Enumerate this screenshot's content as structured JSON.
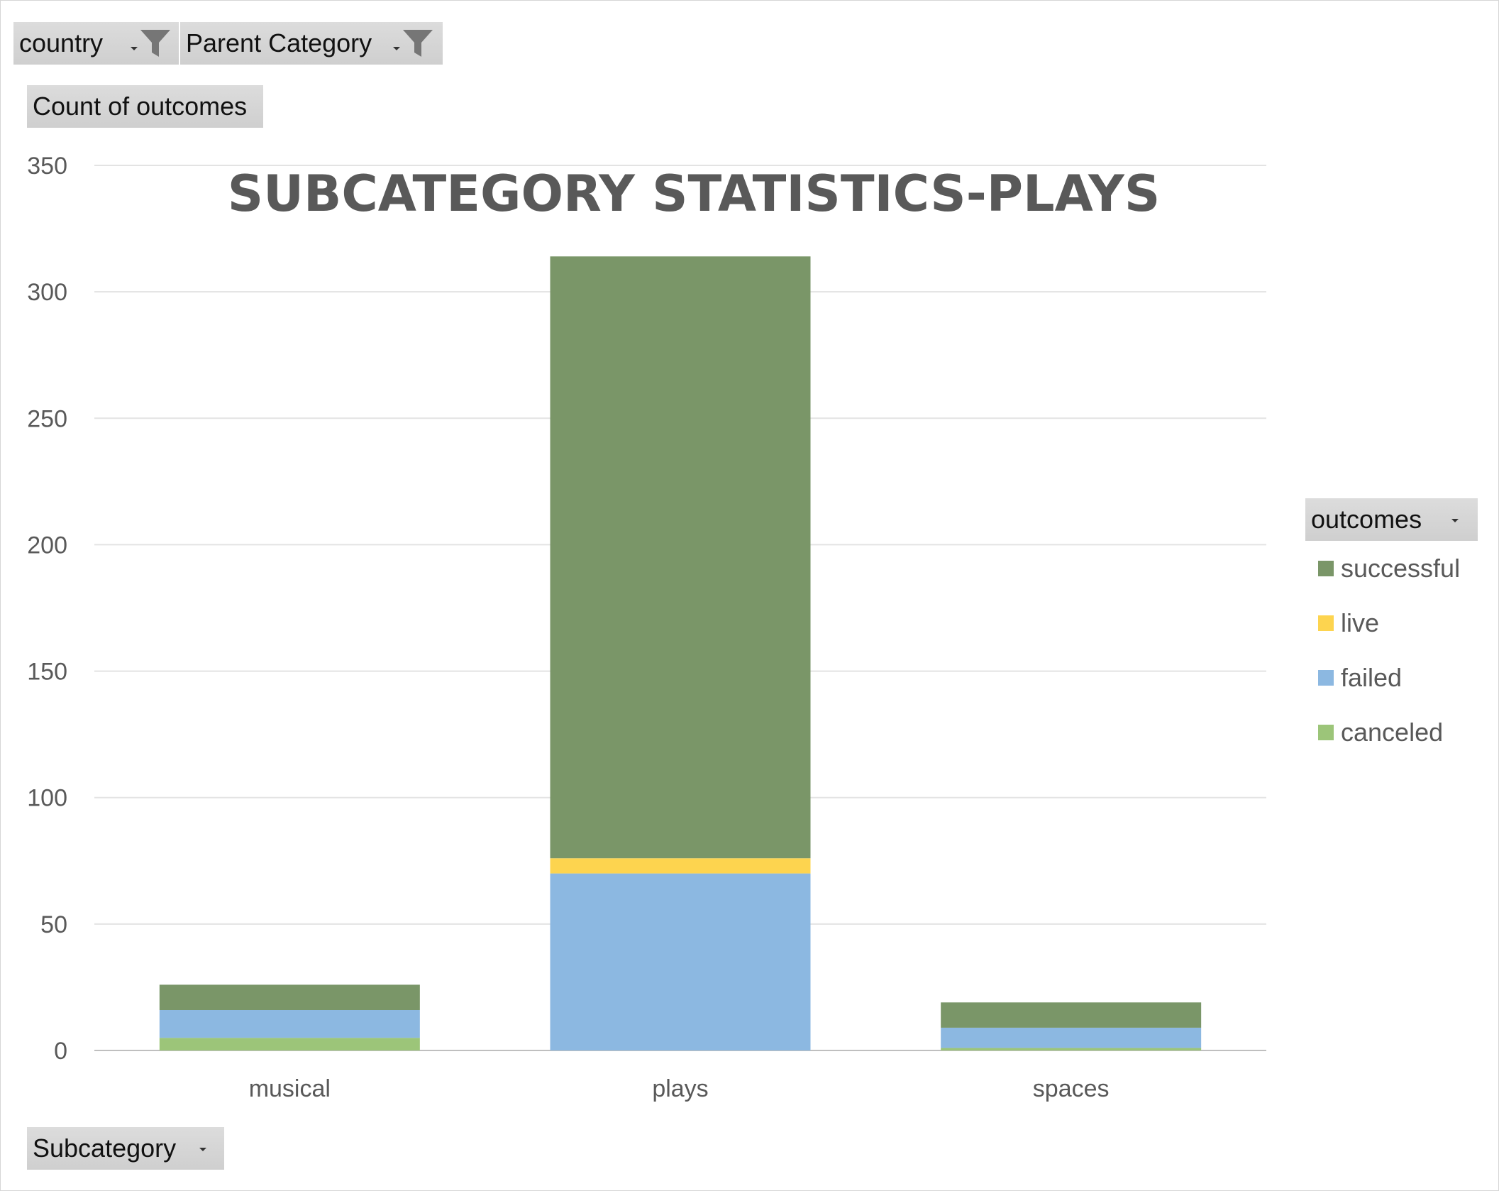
{
  "filters": {
    "country": {
      "label": "country"
    },
    "parent_category": {
      "label": "Parent Category"
    },
    "values_field": {
      "label": "Count of outcomes"
    },
    "axis_field": {
      "label": "Subcategory"
    },
    "legend_field": {
      "label": "outcomes"
    }
  },
  "icons": {
    "filter": "funnel-icon",
    "dropdown": "dropdown-arrow-icon"
  },
  "colors": {
    "successful": "#7a9668",
    "live": "#fdd44f",
    "failed": "#8cb8e1",
    "canceled": "#9cc579",
    "gridline": "#e3e3e3",
    "axis_text": "#595959"
  },
  "chart_data": {
    "type": "bar",
    "stacked": true,
    "title": "SUBCATEGORY STATISTICS-PLAYS",
    "xlabel": "",
    "ylabel": "",
    "categories": [
      "musical",
      "plays",
      "spaces"
    ],
    "yticks": [
      "0",
      "50",
      "100",
      "150",
      "200",
      "250",
      "300",
      "350"
    ],
    "ylim": [
      0,
      350
    ],
    "grid": true,
    "legend_position": "right",
    "series": [
      {
        "name": "canceled",
        "values": [
          5,
          0,
          1
        ]
      },
      {
        "name": "failed",
        "values": [
          11,
          70,
          8
        ]
      },
      {
        "name": "live",
        "values": [
          0,
          6,
          0
        ]
      },
      {
        "name": "successful",
        "values": [
          10,
          238,
          10
        ]
      }
    ],
    "legend_order": [
      "successful",
      "live",
      "failed",
      "canceled"
    ]
  }
}
